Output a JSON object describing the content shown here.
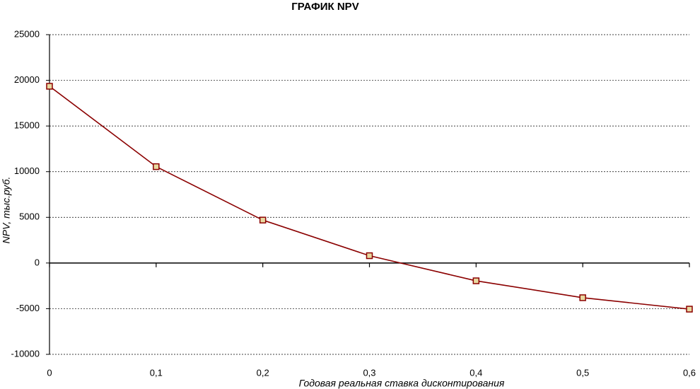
{
  "chart_data": {
    "type": "line",
    "title": "ГРАФИК NPV",
    "x_label": "Годовая реальная ставка дисконтирования",
    "y_label": "NPV, тыс.руб.",
    "x": [
      0,
      0.1,
      0.2,
      0.3,
      0.4,
      0.5,
      0.6
    ],
    "values": [
      19350,
      10550,
      4700,
      800,
      -1950,
      -3800,
      -5050
    ],
    "color": "#8b0000",
    "marker_fill": "#e8d9a0",
    "xlim": [
      0,
      0.6
    ],
    "ylim": [
      -10000,
      25000
    ],
    "xticks": [
      0,
      {
        "value": 0.1,
        "label": "0,1"
      },
      {
        "value": 0.2,
        "label": "0,2"
      },
      {
        "value": 0.3,
        "label": "0,3"
      },
      {
        "value": 0.4,
        "label": "0,4"
      },
      {
        "value": 0.5,
        "label": "0,5"
      },
      {
        "value": 0.6,
        "label": "0,6"
      }
    ],
    "yticks": [
      -10000,
      -5000,
      0,
      5000,
      10000,
      15000,
      20000,
      25000
    ],
    "grid": true
  }
}
